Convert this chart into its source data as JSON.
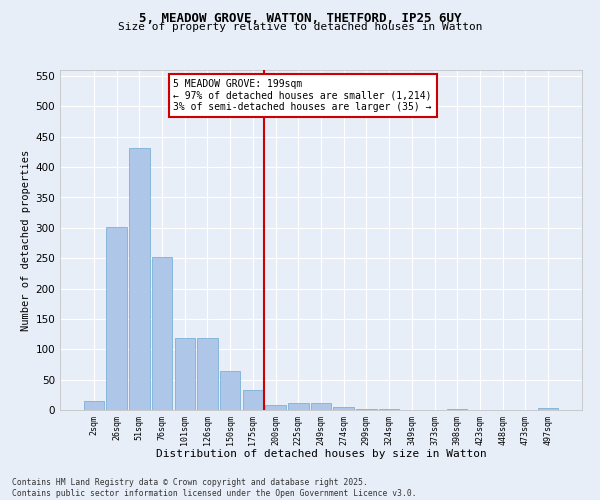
{
  "title1": "5, MEADOW GROVE, WATTON, THETFORD, IP25 6UY",
  "title2": "Size of property relative to detached houses in Watton",
  "xlabel": "Distribution of detached houses by size in Watton",
  "ylabel": "Number of detached properties",
  "categories": [
    "2sqm",
    "26sqm",
    "51sqm",
    "76sqm",
    "101sqm",
    "126sqm",
    "150sqm",
    "175sqm",
    "200sqm",
    "225sqm",
    "249sqm",
    "274sqm",
    "299sqm",
    "324sqm",
    "349sqm",
    "373sqm",
    "398sqm",
    "423sqm",
    "448sqm",
    "473sqm",
    "497sqm"
  ],
  "values": [
    15,
    302,
    432,
    252,
    118,
    118,
    65,
    33,
    8,
    11,
    11,
    5,
    2,
    1,
    0,
    0,
    1,
    0,
    0,
    0,
    3
  ],
  "bar_color": "#aec6e8",
  "bar_edge_color": "#6aaad4",
  "bg_color": "#e8eef8",
  "grid_color": "#ffffff",
  "vline_color": "#cc0000",
  "annotation_text": "5 MEADOW GROVE: 199sqm\n← 97% of detached houses are smaller (1,214)\n3% of semi-detached houses are larger (35) →",
  "annotation_box_color": "#cc0000",
  "footer1": "Contains HM Land Registry data © Crown copyright and database right 2025.",
  "footer2": "Contains public sector information licensed under the Open Government Licence v3.0.",
  "ylim": [
    0,
    560
  ],
  "yticks": [
    0,
    50,
    100,
    150,
    200,
    250,
    300,
    350,
    400,
    450,
    500,
    550
  ]
}
